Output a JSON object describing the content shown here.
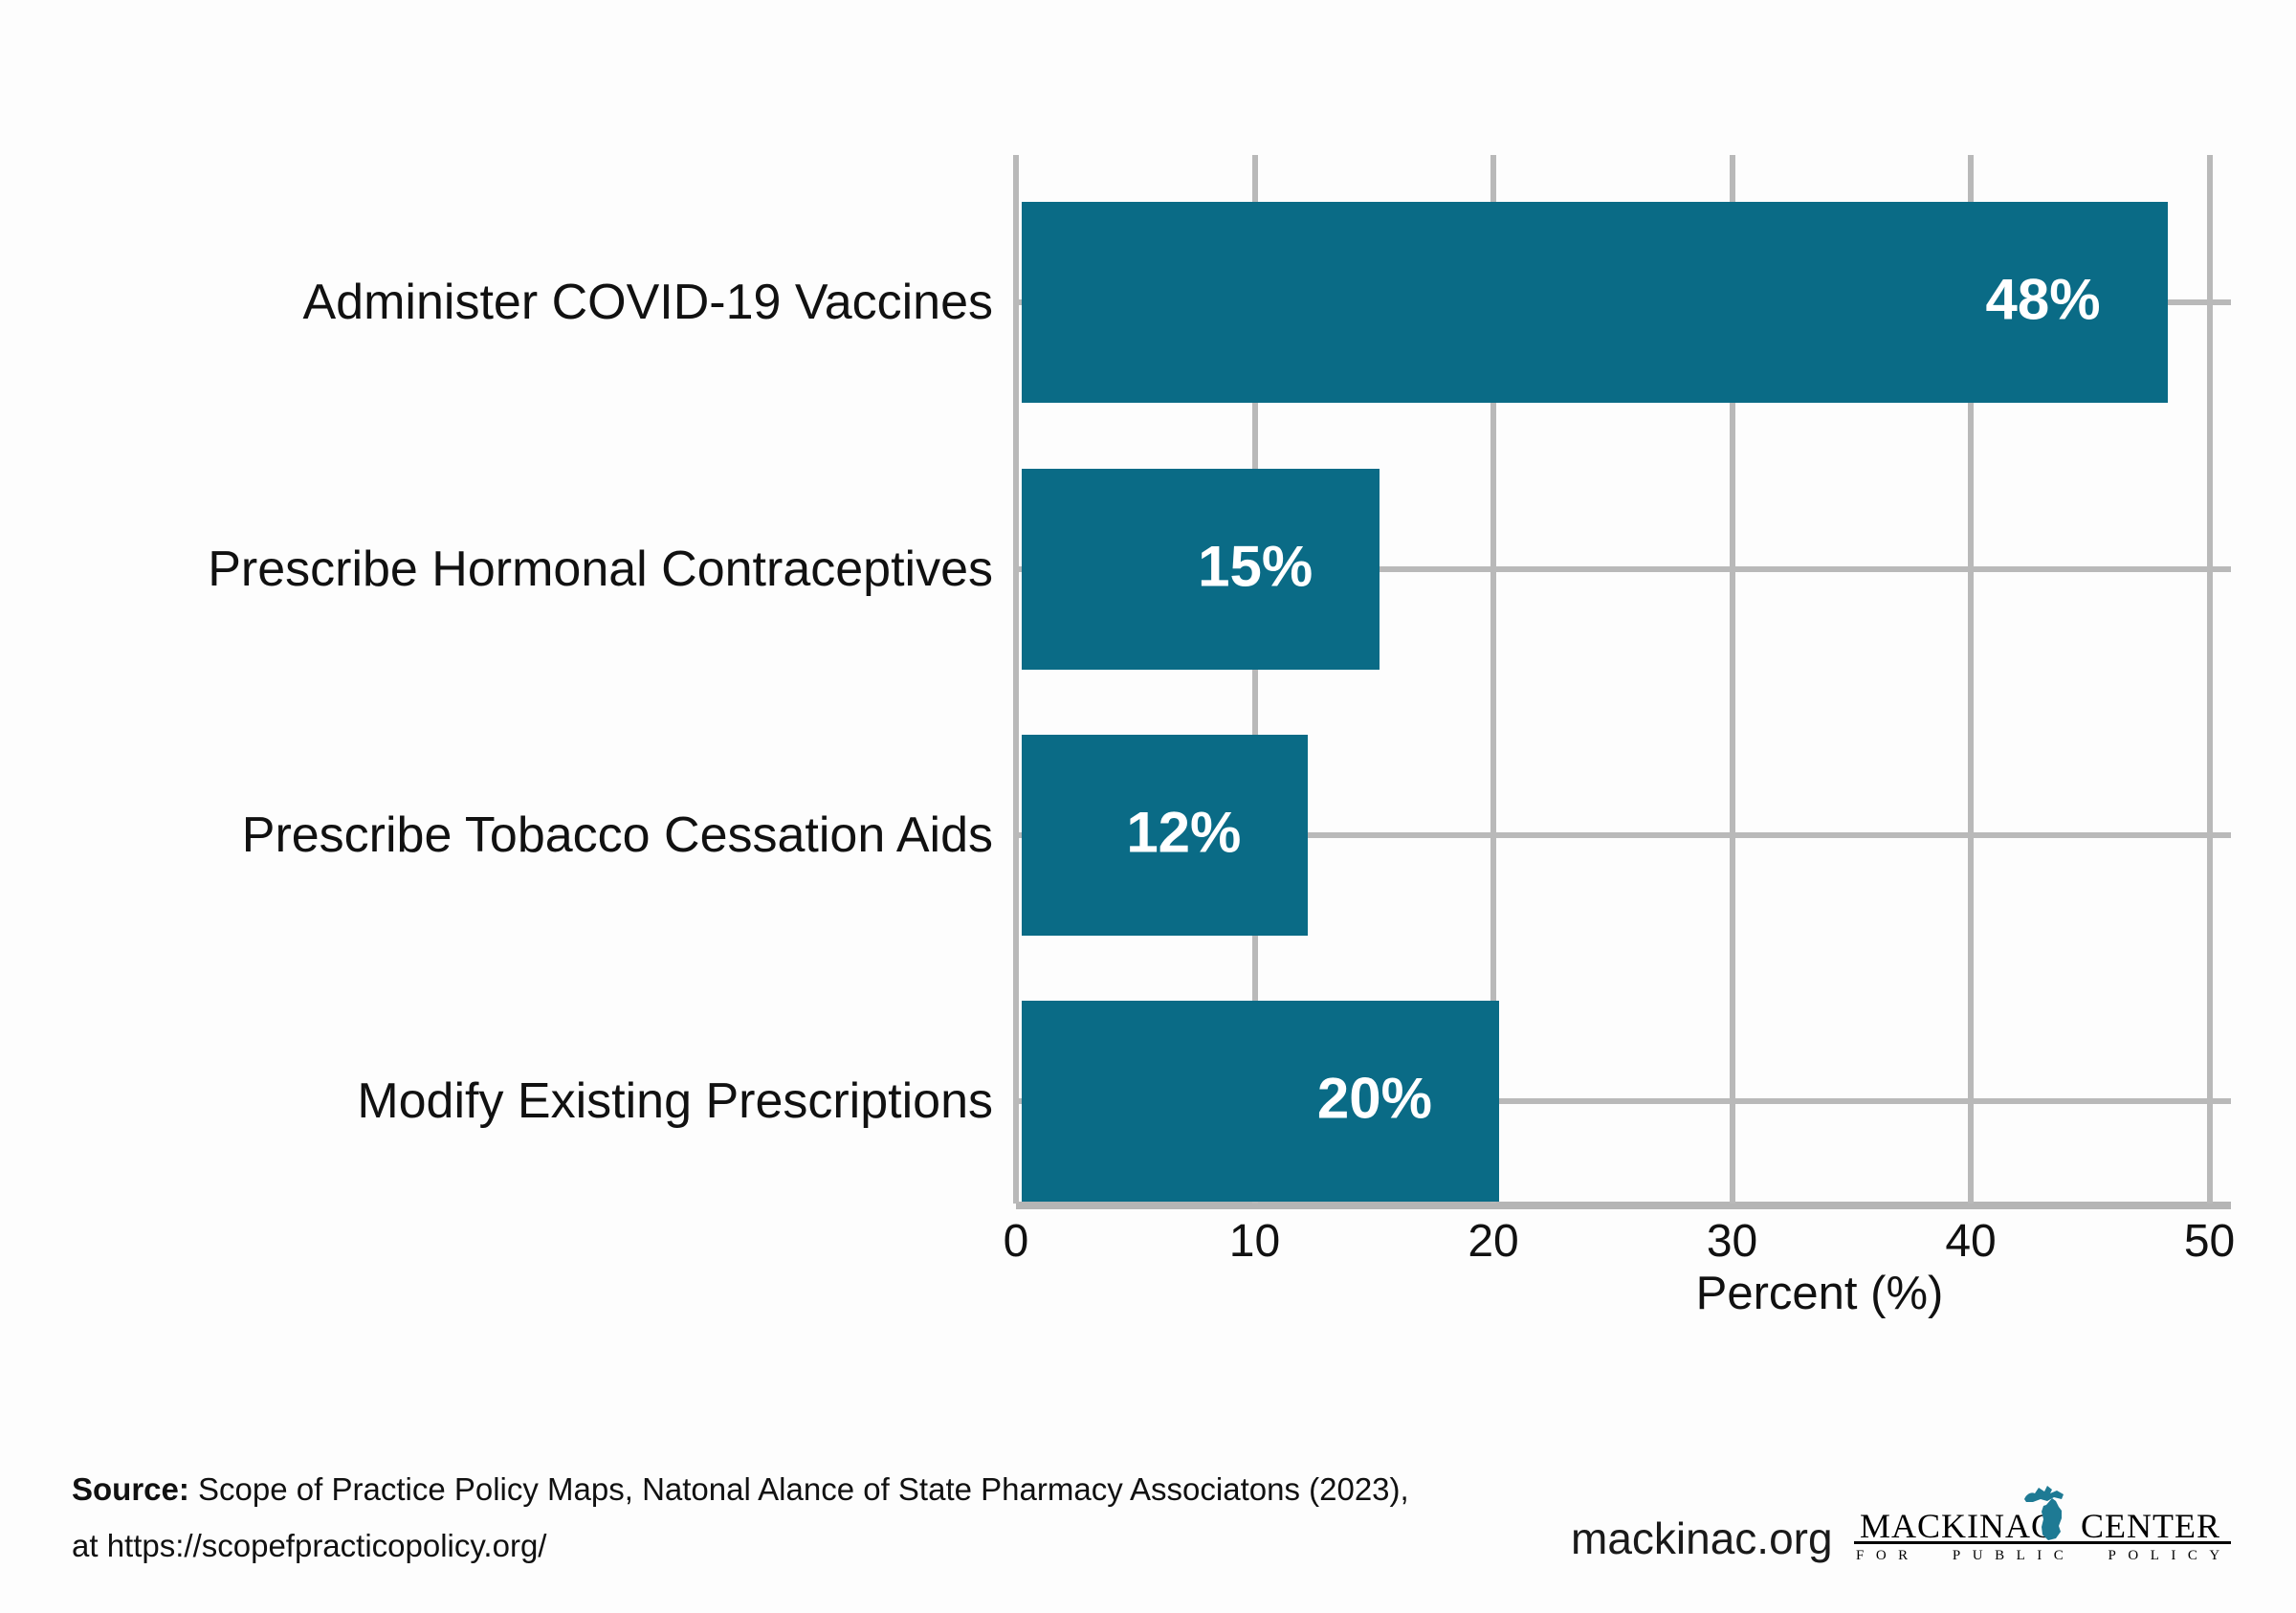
{
  "chart_data": {
    "type": "bar",
    "orientation": "horizontal",
    "title": "",
    "categories": [
      "Administer COVID-19 Vaccines",
      "Prescribe Hormonal Contraceptives",
      "Prescribe Tobacco Cessation Aids",
      "Modify Existing Prescriptions"
    ],
    "values": [
      48,
      15,
      12,
      20
    ],
    "bar_labels": [
      "48%",
      "15%",
      "12%",
      "20%"
    ],
    "xlabel": "Percent (%)",
    "x_ticks": [
      0,
      10,
      20,
      30,
      40,
      50
    ],
    "xlim": [
      0,
      50.9
    ],
    "grid": true,
    "legend": "none",
    "bar_color": "#0a6b86",
    "grid_color": "#b9b9b9",
    "value_label_color": "#ffffff"
  },
  "footer": {
    "source_label": "Source:",
    "source_line1": " Scope of Practice Policy Maps, Natonal Alance of State Pharmacy Associatons (2023),",
    "source_line2": "at https://scopefpracticopolicy.org/",
    "site": "mackinac.org",
    "logo": {
      "word1": "MACKINAC",
      "word2": "CENTER",
      "tagline": "FOR PUBLIC POLICY",
      "icon": "michigan-state-icon",
      "icon_color": "#1e7a94"
    }
  }
}
